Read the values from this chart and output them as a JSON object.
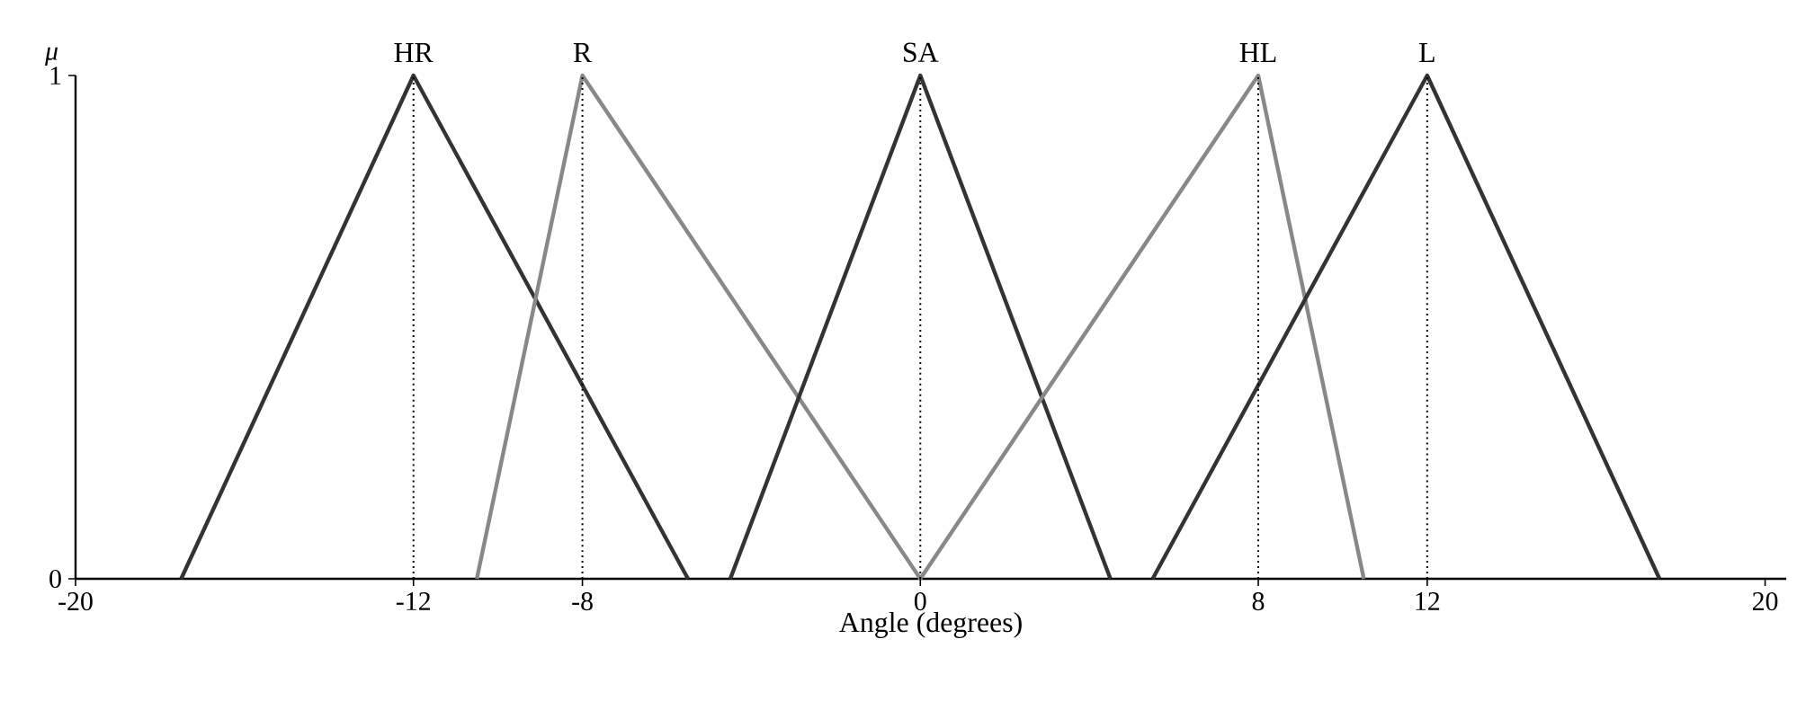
{
  "chart_data": {
    "type": "line",
    "xlabel": "Angle (degrees)",
    "ylabel": "μ",
    "xlim": [
      -20,
      20.5
    ],
    "ylim": [
      0,
      1
    ],
    "xticks": [
      -20,
      -12,
      -8,
      0,
      8,
      12,
      20
    ],
    "yticks": [
      0,
      1
    ],
    "marker": "none",
    "line_style": "solid",
    "series": [
      {
        "color": "#333333",
        "x": [
          -17.5,
          -12,
          -5.5
        ],
        "values": [
          0,
          1,
          0
        ]
      },
      {
        "color": "#888888",
        "x": [
          -10.5,
          -8,
          0
        ],
        "values": [
          0,
          1,
          0
        ]
      },
      {
        "color": "#333333",
        "x": [
          -4.5,
          0,
          4.5
        ],
        "values": [
          0,
          1,
          0
        ]
      },
      {
        "color": "#888888",
        "x": [
          0,
          8,
          10.5
        ],
        "values": [
          0,
          1,
          0
        ]
      },
      {
        "color": "#333333",
        "x": [
          5.5,
          12,
          17.5
        ],
        "values": [
          0,
          1,
          0
        ]
      }
    ],
    "ref_lines": [
      {
        "axis": "x",
        "value": -12,
        "label": "HR",
        "line_style": "dotted"
      },
      {
        "axis": "x",
        "value": -8,
        "label": "R",
        "line_style": "dotted"
      },
      {
        "axis": "x",
        "value": 0,
        "label": "SA",
        "line_style": "dotted"
      },
      {
        "axis": "x",
        "value": 8,
        "label": "HL",
        "line_style": "dotted"
      },
      {
        "axis": "x",
        "value": 12,
        "label": "L",
        "line_style": "dotted"
      }
    ]
  }
}
